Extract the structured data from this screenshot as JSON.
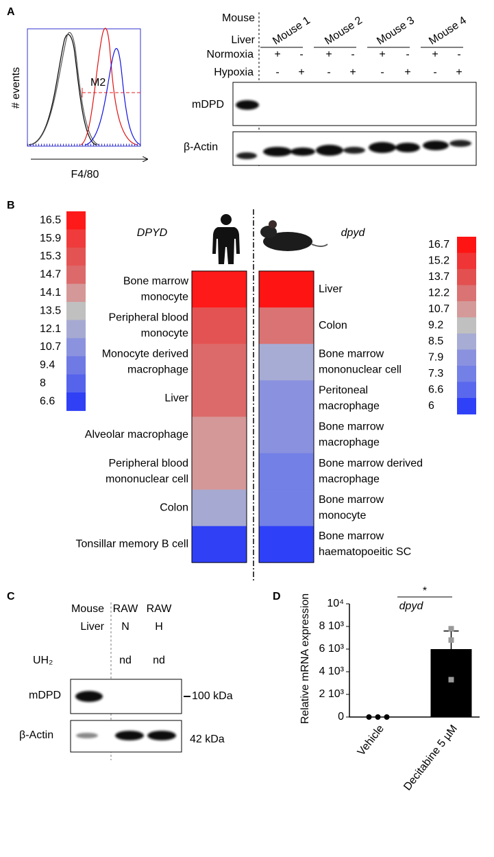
{
  "panel_a": {
    "letter": "A",
    "flow": {
      "y_label": "# events",
      "x_label": "F4/80",
      "gate": "M2"
    },
    "blot": {
      "sample_label": [
        "Mouse",
        "Liver"
      ],
      "mice": [
        "Mouse 1",
        "Mouse 2",
        "Mouse 3",
        "Mouse 4"
      ],
      "conditions": [
        {
          "name": "Normoxia",
          "signs": [
            "+",
            "-",
            "+",
            "-",
            "+",
            "-",
            "+",
            "-"
          ]
        },
        {
          "name": "Hypoxia",
          "signs": [
            "-",
            "+",
            "-",
            "+",
            "-",
            "+",
            "-",
            "+"
          ]
        }
      ],
      "rows": [
        "mDPD",
        "β-Actin"
      ]
    }
  },
  "panel_b": {
    "letter": "B",
    "human": {
      "title": "DPYD",
      "scale": [
        16.5,
        15.9,
        15.3,
        14.7,
        14.1,
        13.5,
        12.1,
        10.7,
        9.4,
        8,
        6.6
      ],
      "colors": [
        "#ff1a1a",
        "#ef3b3b",
        "#e45353",
        "#dc6a6a",
        "#d49898",
        "#c0c0c0",
        "#a6aad2",
        "#8b93de",
        "#6f7ae4",
        "#5664ec",
        "#2f40f5"
      ],
      "labels": [
        [
          "Bone marrow",
          "monocyte"
        ],
        [
          "Peripheral blood",
          "monocyte"
        ],
        [
          "Monocyte derived",
          "macrophage"
        ],
        [
          "Liver"
        ],
        [
          "Alveolar macrophage"
        ],
        [
          "Peripheral blood",
          "mononuclear cell"
        ],
        [
          "Colon"
        ],
        [
          "Tonsillar memory B cell"
        ]
      ],
      "values": [
        16.5,
        15.3,
        14.7,
        14.7,
        14.1,
        14.1,
        12.1,
        6.6
      ]
    },
    "mouse": {
      "title": "dpyd",
      "scale": [
        16.7,
        15.2,
        13.7,
        12.2,
        10.7,
        9.2,
        8.5,
        7.9,
        7.3,
        6.6,
        6
      ],
      "colors": [
        "#ff1414",
        "#ef3535",
        "#e35050",
        "#da7373",
        "#d49a9a",
        "#c0c0c0",
        "#a7acd4",
        "#8a92df",
        "#7380e6",
        "#5a68ee",
        "#2f41f8"
      ],
      "labels": [
        [
          "Liver"
        ],
        [
          "Colon"
        ],
        [
          "Bone marrow",
          "mononuclear cell"
        ],
        [
          "Peritoneal",
          "macrophage"
        ],
        [
          "Bone marrow",
          "macrophage"
        ],
        [
          "Bone marrow derived",
          "macrophage"
        ],
        [
          "Bone marrow",
          "monocyte"
        ],
        [
          "Bone marrow",
          "haematopoeitic SC"
        ]
      ],
      "values": [
        16.7,
        12.2,
        8.5,
        7.9,
        7.9,
        7.3,
        7.3,
        6
      ]
    }
  },
  "panel_c": {
    "letter": "C",
    "lanes": [
      [
        "Mouse",
        "Liver"
      ],
      [
        "RAW",
        "N"
      ],
      [
        "RAW",
        "H"
      ]
    ],
    "uh2_label": "UH₂",
    "uh2": [
      "nd",
      "nd"
    ],
    "rows": [
      "mDPD",
      "β-Actin"
    ],
    "sizes": [
      "100 kDa",
      "42 kDa"
    ]
  },
  "panel_d": {
    "letter": "D"
  },
  "chart_data": {
    "type": "bar",
    "title": "dpyd",
    "y_label": "Relative mRNA expression",
    "categories": [
      "Vehicle",
      "Decitabine 5 µM"
    ],
    "values": [
      0,
      6000
    ],
    "errors": [
      0,
      1600
    ],
    "points": [
      [
        0,
        0,
        0
      ],
      [
        7800,
        6800,
        3300
      ]
    ],
    "point_colors": [
      "#000000",
      "#999999"
    ],
    "color": "#000000",
    "significance": "*",
    "ylim": [
      0,
      10000
    ],
    "yticks": [
      0,
      {
        "value": 2000,
        "label": "2 10³"
      },
      {
        "value": 4000,
        "label": "4 10³"
      },
      {
        "value": 6000,
        "label": "6 10³"
      },
      {
        "value": 8000,
        "label": "8 10³"
      },
      {
        "value": 10000,
        "label": "10⁴"
      }
    ]
  }
}
